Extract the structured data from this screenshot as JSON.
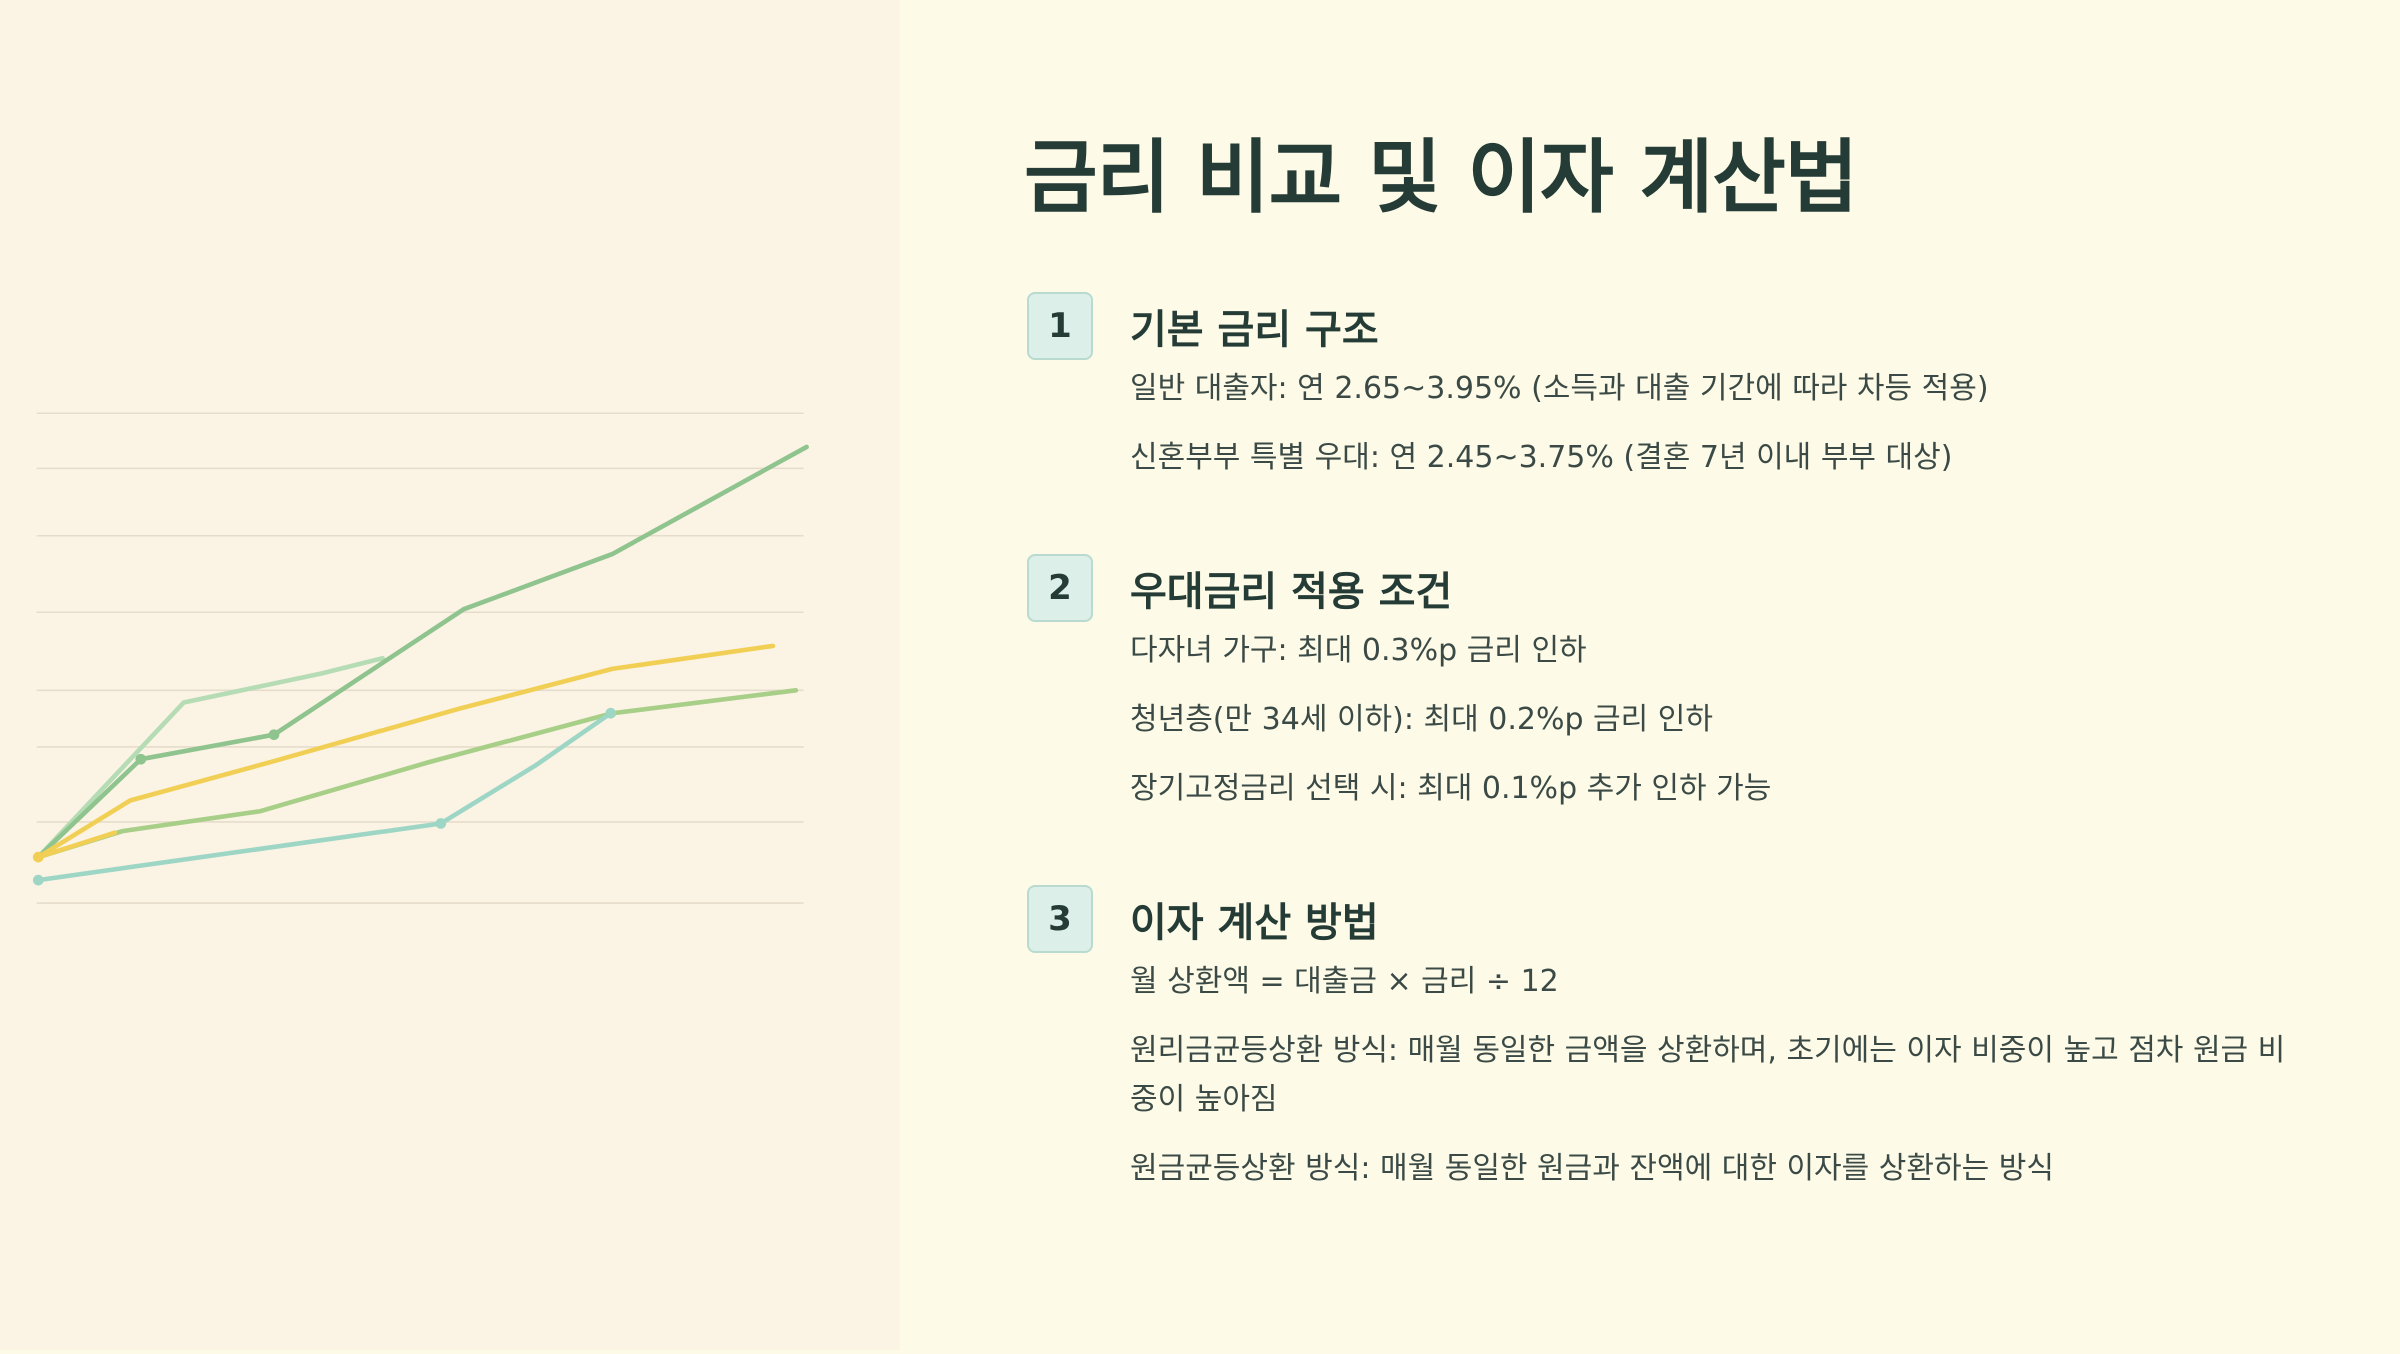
{
  "title": "금리 비교 및 이자 계산법",
  "sections": [
    {
      "number": "1",
      "heading": "기본 금리 구조",
      "items": [
        "일반 대출자: 연 2.65~3.95% (소득과 대출 기간에 따라 차등 적용)",
        "신혼부부 특별 우대: 연 2.45~3.75% (결혼 7년 이내 부부 대상)"
      ]
    },
    {
      "number": "2",
      "heading": "우대금리 적용 조건",
      "items": [
        "다자녀 가구: 최대 0.3%p 금리 인하",
        "청년층(만 34세 이하): 최대 0.2%p 금리 인하",
        "장기고정금리 선택 시: 최대 0.1%p 추가 인하 가능"
      ]
    },
    {
      "number": "3",
      "heading": "이자 계산 방법",
      "items": [
        "월 상환액 = 대출금 × 금리 ÷ 12",
        "원리금균등상환 방식: 매월 동일한 금액을 상환하며, 초기에는 이자 비중이 높고 점차 원금 비중이 높아짐",
        "원금균등상환 방식: 매월 동일한 원금과 잔액에 대한 이자를 상환하는 방식"
      ]
    }
  ]
}
